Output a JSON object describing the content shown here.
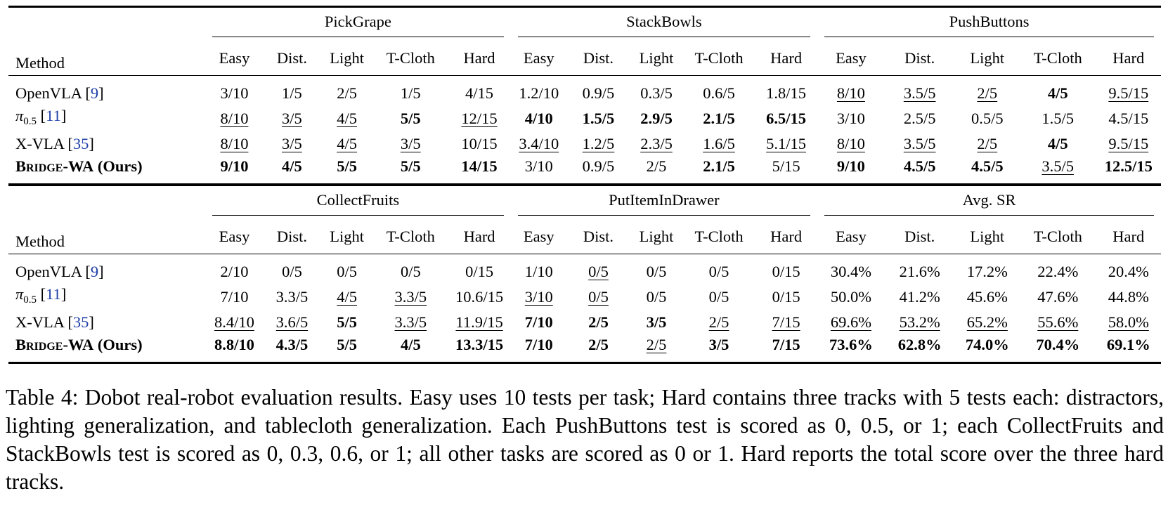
{
  "tables": [
    {
      "groups": [
        "PickGrape",
        "StackBowls",
        "PushButtons"
      ],
      "rows": [
        {
          "m": "OpenVLA",
          "cite": "9",
          "cells": [
            {
              "v": "3/10"
            },
            {
              "v": "1/5"
            },
            {
              "v": "2/5"
            },
            {
              "v": "1/5"
            },
            {
              "v": "4/15"
            },
            {
              "v": "1.2/10"
            },
            {
              "v": "0.9/5"
            },
            {
              "v": "0.3/5"
            },
            {
              "v": "0.6/5"
            },
            {
              "v": "1.8/15"
            },
            {
              "v": "8/10",
              "s": "u"
            },
            {
              "v": "3.5/5",
              "s": "u"
            },
            {
              "v": "2/5",
              "s": "u"
            },
            {
              "v": "4/5",
              "s": "b"
            },
            {
              "v": "9.5/15",
              "s": "u"
            }
          ]
        },
        {
          "m": "pi05",
          "cite": "11",
          "cells": [
            {
              "v": "8/10",
              "s": "u"
            },
            {
              "v": "3/5",
              "s": "u"
            },
            {
              "v": "4/5",
              "s": "u"
            },
            {
              "v": "5/5",
              "s": "b"
            },
            {
              "v": "12/15",
              "s": "u"
            },
            {
              "v": "4/10",
              "s": "b"
            },
            {
              "v": "1.5/5",
              "s": "b"
            },
            {
              "v": "2.9/5",
              "s": "b"
            },
            {
              "v": "2.1/5",
              "s": "b"
            },
            {
              "v": "6.5/15",
              "s": "b"
            },
            {
              "v": "3/10"
            },
            {
              "v": "2.5/5"
            },
            {
              "v": "0.5/5"
            },
            {
              "v": "1.5/5"
            },
            {
              "v": "4.5/15"
            }
          ]
        },
        {
          "m": "X-VLA",
          "cite": "35",
          "cells": [
            {
              "v": "8/10",
              "s": "u"
            },
            {
              "v": "3/5",
              "s": "u"
            },
            {
              "v": "4/5",
              "s": "u"
            },
            {
              "v": "3/5",
              "s": "u"
            },
            {
              "v": "10/15"
            },
            {
              "v": "3.4/10",
              "s": "u"
            },
            {
              "v": "1.2/5",
              "s": "u"
            },
            {
              "v": "2.3/5",
              "s": "u"
            },
            {
              "v": "1.6/5",
              "s": "u"
            },
            {
              "v": "5.1/15",
              "s": "u"
            },
            {
              "v": "8/10",
              "s": "u"
            },
            {
              "v": "3.5/5",
              "s": "u"
            },
            {
              "v": "2/5",
              "s": "u"
            },
            {
              "v": "4/5",
              "s": "b"
            },
            {
              "v": "9.5/15",
              "s": "u"
            }
          ]
        },
        {
          "m": "BRIDGE",
          "cells": [
            {
              "v": "9/10",
              "s": "b"
            },
            {
              "v": "4/5",
              "s": "b"
            },
            {
              "v": "5/5",
              "s": "b"
            },
            {
              "v": "5/5",
              "s": "b"
            },
            {
              "v": "14/15",
              "s": "b"
            },
            {
              "v": "3/10"
            },
            {
              "v": "0.9/5"
            },
            {
              "v": "2/5"
            },
            {
              "v": "2.1/5",
              "s": "b"
            },
            {
              "v": "5/15"
            },
            {
              "v": "9/10",
              "s": "b"
            },
            {
              "v": "4.5/5",
              "s": "b"
            },
            {
              "v": "4.5/5",
              "s": "b"
            },
            {
              "v": "3.5/5",
              "s": "u"
            },
            {
              "v": "12.5/15",
              "s": "b"
            }
          ]
        }
      ]
    },
    {
      "groups": [
        "CollectFruits",
        "PutItemInDrawer",
        "Avg. SR"
      ],
      "rows": [
        {
          "m": "OpenVLA",
          "cite": "9",
          "cells": [
            {
              "v": "2/10"
            },
            {
              "v": "0/5"
            },
            {
              "v": "0/5"
            },
            {
              "v": "0/5"
            },
            {
              "v": "0/15"
            },
            {
              "v": "1/10"
            },
            {
              "v": "0/5",
              "s": "u"
            },
            {
              "v": "0/5"
            },
            {
              "v": "0/5"
            },
            {
              "v": "0/15"
            },
            {
              "v": "30.4%"
            },
            {
              "v": "21.6%"
            },
            {
              "v": "17.2%"
            },
            {
              "v": "22.4%"
            },
            {
              "v": "20.4%"
            }
          ]
        },
        {
          "m": "pi05",
          "cite": "11",
          "cells": [
            {
              "v": "7/10"
            },
            {
              "v": "3.3/5"
            },
            {
              "v": "4/5",
              "s": "u"
            },
            {
              "v": "3.3/5",
              "s": "u"
            },
            {
              "v": "10.6/15"
            },
            {
              "v": "3/10",
              "s": "u"
            },
            {
              "v": "0/5",
              "s": "u"
            },
            {
              "v": "0/5"
            },
            {
              "v": "0/5"
            },
            {
              "v": "0/15"
            },
            {
              "v": "50.0%"
            },
            {
              "v": "41.2%"
            },
            {
              "v": "45.6%"
            },
            {
              "v": "47.6%"
            },
            {
              "v": "44.8%"
            }
          ]
        },
        {
          "m": "X-VLA",
          "cite": "35",
          "cells": [
            {
              "v": "8.4/10",
              "s": "u"
            },
            {
              "v": "3.6/5",
              "s": "u"
            },
            {
              "v": "5/5",
              "s": "b"
            },
            {
              "v": "3.3/5",
              "s": "u"
            },
            {
              "v": "11.9/15",
              "s": "u"
            },
            {
              "v": "7/10",
              "s": "b"
            },
            {
              "v": "2/5",
              "s": "b"
            },
            {
              "v": "3/5",
              "s": "b"
            },
            {
              "v": "2/5",
              "s": "u"
            },
            {
              "v": "7/15",
              "s": "u"
            },
            {
              "v": "69.6%",
              "s": "u"
            },
            {
              "v": "53.2%",
              "s": "u"
            },
            {
              "v": "65.2%",
              "s": "u"
            },
            {
              "v": "55.6%",
              "s": "u"
            },
            {
              "v": "58.0%",
              "s": "u"
            }
          ]
        },
        {
          "m": "BRIDGE",
          "cells": [
            {
              "v": "8.8/10",
              "s": "b"
            },
            {
              "v": "4.3/5",
              "s": "b"
            },
            {
              "v": "5/5",
              "s": "b"
            },
            {
              "v": "4/5",
              "s": "b"
            },
            {
              "v": "13.3/15",
              "s": "b"
            },
            {
              "v": "7/10",
              "s": "b"
            },
            {
              "v": "2/5",
              "s": "b"
            },
            {
              "v": "2/5",
              "s": "u"
            },
            {
              "v": "3/5",
              "s": "b"
            },
            {
              "v": "7/15",
              "s": "b"
            },
            {
              "v": "73.6%",
              "s": "b"
            },
            {
              "v": "62.8%",
              "s": "b"
            },
            {
              "v": "74.0%",
              "s": "b"
            },
            {
              "v": "70.4%",
              "s": "b"
            },
            {
              "v": "69.1%",
              "s": "b"
            }
          ]
        }
      ]
    }
  ],
  "labels": {
    "method_header": "Method",
    "subcols": [
      "Easy",
      "Dist.",
      "Light",
      "T-Cloth",
      "Hard"
    ],
    "openvla": "OpenVLA",
    "xvla": "X-VLA",
    "pi_symbol": "π",
    "pi_sub": "0.5",
    "bridge_name": "Bridge-WA",
    "bridge_suffix": " (Ours)"
  },
  "caption": "Table 4: Dobot real-robot evaluation results. Easy uses 10 tests per task; Hard contains three tracks with 5 tests each: distractors, lighting generalization, and tablecloth generalization. Each PushButtons test is scored as 0, 0.5, or 1; each CollectFruits and StackBowls test is scored as 0, 0.3, 0.6, or 1; all other tasks are scored as 0 or 1. Hard reports the total score over the three hard tracks."
}
